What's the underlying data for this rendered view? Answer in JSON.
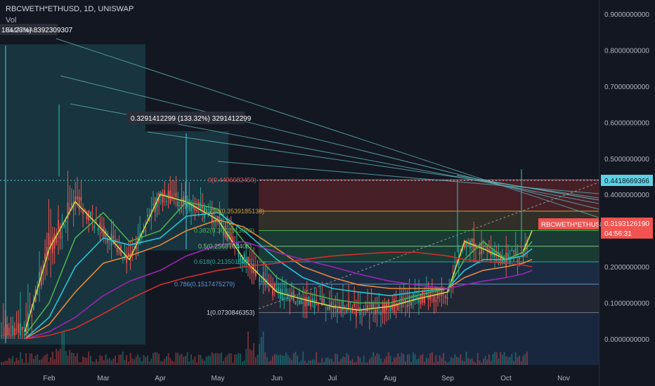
{
  "header": {
    "symbol_line": "RBCWETH*ETHUSD, 1D, UNISWAP",
    "vol_label": "Vol",
    "ema_label": "EMA/MA"
  },
  "price_axis": {
    "ticks": [
      "0.9000000000",
      "0.8000000000",
      "0.7000000000",
      "0.6000000000",
      "0.5000000000",
      "0.4000000000",
      "0.3000000000",
      "0.2000000000",
      "0.1000000000",
      "0.0000000000"
    ]
  },
  "time_axis": {
    "ticks": [
      "Feb",
      "Mar",
      "Apr",
      "May",
      "Jun",
      "Jul",
      "Aug",
      "Sep",
      "Oct",
      "Nov"
    ]
  },
  "labels": {
    "last_price": "0.4418669366",
    "symbol_tag": "RBCWETH*ETHUSD",
    "current_price": "0.3193126190",
    "countdown": "04:56:31",
    "measure_left": "184.23%) 8392309307",
    "measure_mid": "0.3291412299 (133.32%) 3291412299"
  },
  "fib_levels": [
    {
      "label": "0(0.4406682459)",
      "value": 0.4406682459
    },
    {
      "label": "0.236(0.3539185138)",
      "value": 0.3539185138
    },
    {
      "label": "0.382(0.3002513066)",
      "value": 0.3002513066
    },
    {
      "label": "0.5(0.2568764406)",
      "value": 0.2568764406
    },
    {
      "label": "0.618(0.2135015745)",
      "value": 0.2135015745
    },
    {
      "label": "0.786(0.1517475279)",
      "value": 0.1517475279
    },
    {
      "label": "1(0.0730846353)",
      "value": 0.0730846353
    }
  ],
  "colors": {
    "background": "#131722",
    "up": "#26a69a",
    "down": "#ef5350",
    "fib_red": "#7a2a2e",
    "fib_green": "#1f4d3c",
    "fib_blue": "#1e3450",
    "teal_box": "#1f5a63",
    "last_price_tag": "#5ad2e6",
    "current_price_tag": "#f05350"
  },
  "chart_data": {
    "type": "line",
    "y_range": [
      -0.05,
      0.95
    ],
    "x": [
      "Jan-20",
      "Feb-01",
      "Feb-15",
      "Mar-01",
      "Mar-15",
      "Apr-01",
      "Apr-15",
      "May-01",
      "May-15",
      "Jun-01",
      "Jun-15",
      "Jul-01",
      "Jul-15",
      "Aug-01",
      "Aug-15",
      "Sep-01",
      "Sep-10",
      "Sep-20",
      "Oct-01",
      "Oct-10",
      "Oct-15"
    ],
    "series": [
      {
        "values": [
          0.02,
          0.25,
          0.38,
          0.3,
          0.22,
          0.4,
          0.38,
          0.33,
          0.22,
          0.13,
          0.11,
          0.09,
          0.08,
          0.09,
          0.11,
          0.13,
          0.27,
          0.25,
          0.22,
          0.24,
          0.3
        ]
      },
      {
        "values": [
          0.01,
          0.1,
          0.28,
          0.35,
          0.27,
          0.3,
          0.38,
          0.36,
          0.27,
          0.17,
          0.13,
          0.11,
          0.1,
          0.1,
          0.12,
          0.14,
          0.22,
          0.27,
          0.22,
          0.24,
          0.27
        ]
      },
      {
        "values": [
          0.0,
          0.06,
          0.2,
          0.28,
          0.26,
          0.28,
          0.34,
          0.35,
          0.3,
          0.22,
          0.17,
          0.14,
          0.13,
          0.12,
          0.13,
          0.14,
          0.19,
          0.22,
          0.22,
          0.23,
          0.25
        ]
      },
      {
        "values": [
          0.0,
          0.04,
          0.13,
          0.21,
          0.23,
          0.26,
          0.3,
          0.33,
          0.31,
          0.25,
          0.2,
          0.17,
          0.15,
          0.14,
          0.14,
          0.14,
          0.17,
          0.19,
          0.2,
          0.21,
          0.22
        ]
      },
      {
        "values": [
          0.0,
          0.02,
          0.06,
          0.12,
          0.16,
          0.19,
          0.23,
          0.26,
          0.27,
          0.24,
          0.22,
          0.2,
          0.18,
          0.16,
          0.15,
          0.14,
          0.15,
          0.16,
          0.17,
          0.18,
          0.19
        ]
      },
      {
        "values": [
          0.0,
          0.01,
          0.03,
          0.07,
          0.11,
          0.15,
          0.17,
          0.19,
          0.2,
          0.21,
          0.22,
          0.23,
          0.235,
          0.24,
          0.24,
          0.23,
          0.22,
          0.215,
          0.21,
          0.205,
          0.2
        ]
      }
    ]
  }
}
